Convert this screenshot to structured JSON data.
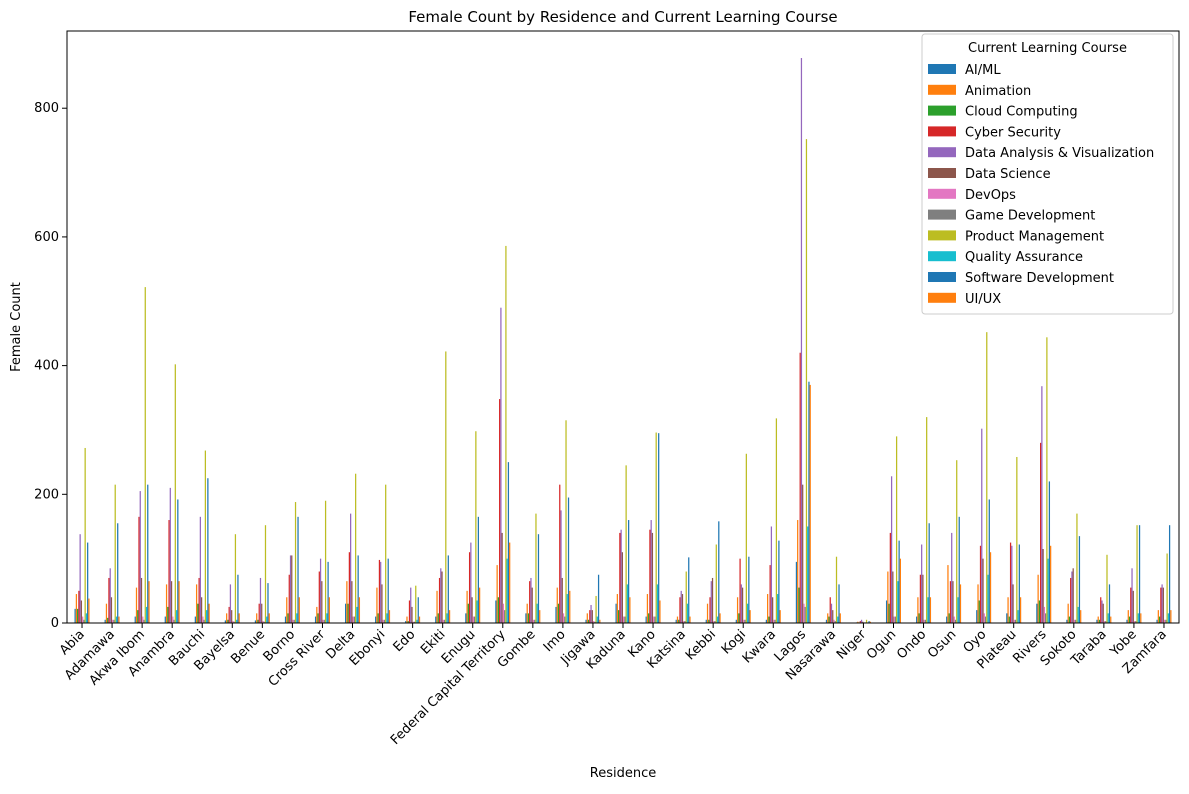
{
  "chart_data": {
    "type": "bar",
    "title": "Female Count by Residence and Current Learning Course",
    "xlabel": "Residence",
    "ylabel": "Female Count",
    "ylim": [
      0,
      920
    ],
    "yticks": [
      0,
      200,
      400,
      600,
      800
    ],
    "legend": {
      "title": "Current Learning Course",
      "placement": "top-right"
    },
    "categories": [
      "Abia",
      "Adamawa",
      "Akwa Ibom",
      "Anambra",
      "Bauchi",
      "Bayelsa",
      "Benue",
      "Borno",
      "Cross River",
      "Delta",
      "Ebonyi",
      "Edo",
      "Ekiti",
      "Enugu",
      "Federal Capital Territory",
      "Gombe",
      "Imo",
      "Jigawa",
      "Kaduna",
      "Kano",
      "Katsina",
      "Kebbi",
      "Kogi",
      "Kwara",
      "Lagos",
      "Nasarawa",
      "Niger",
      "Ogun",
      "Ondo",
      "Osun",
      "Oyo",
      "Plateau",
      "Rivers",
      "Sokoto",
      "Taraba",
      "Yobe",
      "Zamfara"
    ],
    "series": [
      {
        "name": "AI/ML",
        "color": "#1f77b4",
        "values": [
          22,
          5,
          10,
          10,
          10,
          4,
          4,
          10,
          10,
          30,
          10,
          3,
          10,
          15,
          35,
          15,
          25,
          5,
          30,
          10,
          5,
          5,
          5,
          5,
          95,
          5,
          1,
          35,
          10,
          10,
          20,
          15,
          30,
          5,
          5,
          5,
          5
        ]
      },
      {
        "name": "Animation",
        "color": "#ff7f0e",
        "values": [
          45,
          30,
          55,
          60,
          60,
          15,
          15,
          40,
          25,
          65,
          55,
          10,
          50,
          50,
          90,
          30,
          55,
          15,
          45,
          45,
          10,
          30,
          40,
          45,
          160,
          15,
          2,
          80,
          40,
          90,
          60,
          40,
          75,
          30,
          10,
          20,
          20
        ]
      },
      {
        "name": "Cloud Computing",
        "color": "#2ca02c",
        "values": [
          22,
          8,
          20,
          25,
          30,
          5,
          5,
          15,
          15,
          30,
          15,
          3,
          15,
          30,
          40,
          15,
          30,
          5,
          20,
          15,
          5,
          5,
          15,
          10,
          55,
          10,
          1,
          30,
          15,
          15,
          35,
          10,
          35,
          10,
          5,
          10,
          10
        ]
      },
      {
        "name": "Cyber Security",
        "color": "#d62728",
        "values": [
          50,
          70,
          165,
          160,
          70,
          25,
          30,
          75,
          80,
          110,
          98,
          35,
          70,
          110,
          348,
          65,
          215,
          20,
          140,
          145,
          40,
          40,
          100,
          90,
          420,
          40,
          3,
          140,
          75,
          65,
          120,
          125,
          280,
          70,
          40,
          55,
          55
        ]
      },
      {
        "name": "Data Analysis & Visualization",
        "color": "#9467bd",
        "values": [
          138,
          85,
          205,
          210,
          165,
          60,
          70,
          105,
          100,
          170,
          95,
          55,
          85,
          125,
          490,
          70,
          175,
          28,
          145,
          160,
          50,
          65,
          60,
          150,
          878,
          30,
          5,
          228,
          122,
          140,
          302,
          120,
          368,
          80,
          35,
          85,
          60
        ]
      },
      {
        "name": "Data Science",
        "color": "#8c564b",
        "values": [
          35,
          40,
          70,
          65,
          40,
          20,
          30,
          105,
          65,
          65,
          60,
          25,
          80,
          40,
          140,
          55,
          70,
          20,
          110,
          140,
          45,
          70,
          55,
          40,
          215,
          20,
          2,
          80,
          75,
          65,
          100,
          60,
          115,
          85,
          30,
          50,
          55
        ]
      },
      {
        "name": "DevOps",
        "color": "#e377c2",
        "values": [
          10,
          5,
          10,
          10,
          10,
          3,
          3,
          5,
          5,
          10,
          5,
          2,
          5,
          10,
          30,
          5,
          15,
          3,
          10,
          10,
          3,
          3,
          5,
          5,
          30,
          5,
          1,
          10,
          5,
          10,
          15,
          5,
          25,
          5,
          3,
          3,
          5
        ]
      },
      {
        "name": "Game Development",
        "color": "#7f7f7f",
        "values": [
          5,
          5,
          5,
          5,
          5,
          2,
          2,
          5,
          5,
          10,
          5,
          2,
          5,
          10,
          20,
          5,
          10,
          2,
          10,
          10,
          3,
          3,
          5,
          5,
          25,
          3,
          1,
          10,
          5,
          5,
          10,
          5,
          15,
          5,
          3,
          3,
          5
        ]
      },
      {
        "name": "Product Management",
        "color": "#bcbd22",
        "values": [
          272,
          215,
          522,
          402,
          268,
          138,
          152,
          188,
          190,
          232,
          215,
          58,
          422,
          298,
          586,
          170,
          315,
          42,
          245,
          296,
          80,
          122,
          263,
          318,
          752,
          103,
          5,
          290,
          320,
          253,
          452,
          258,
          444,
          170,
          106,
          152,
          108
        ]
      },
      {
        "name": "Quality Assurance",
        "color": "#17becf",
        "values": [
          15,
          10,
          25,
          20,
          20,
          5,
          10,
          15,
          15,
          25,
          15,
          5,
          15,
          35,
          100,
          30,
          45,
          10,
          60,
          60,
          30,
          10,
          30,
          45,
          150,
          10,
          1,
          65,
          40,
          40,
          75,
          20,
          100,
          25,
          15,
          15,
          15
        ]
      },
      {
        "name": "Software Development",
        "color": "#1f77b4",
        "values": [
          125,
          155,
          215,
          192,
          225,
          75,
          62,
          165,
          95,
          105,
          100,
          40,
          105,
          165,
          250,
          138,
          195,
          75,
          160,
          295,
          102,
          158,
          103,
          128,
          375,
          60,
          3,
          128,
          155,
          165,
          192,
          122,
          220,
          135,
          60,
          152,
          152
        ]
      },
      {
        "name": "UI/UX",
        "color": "#ff7f0e",
        "values": [
          38,
          10,
          65,
          65,
          30,
          15,
          15,
          40,
          40,
          40,
          20,
          10,
          20,
          55,
          125,
          20,
          50,
          5,
          40,
          35,
          10,
          15,
          20,
          20,
          370,
          15,
          2,
          100,
          40,
          60,
          110,
          40,
          120,
          20,
          10,
          15,
          20
        ]
      }
    ]
  }
}
